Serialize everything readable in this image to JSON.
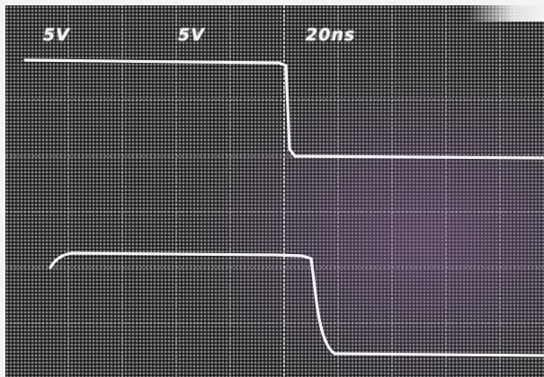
{
  "readouts": {
    "channel1_scale": "5V",
    "channel2_scale": "5V",
    "timebase": "20ns"
  },
  "colors": {
    "screen_background": "#2e2e2e",
    "trace": "#f2f2f2",
    "graticule": "#cfcfcf",
    "phosphor_tint": "#6a4a78"
  }
}
